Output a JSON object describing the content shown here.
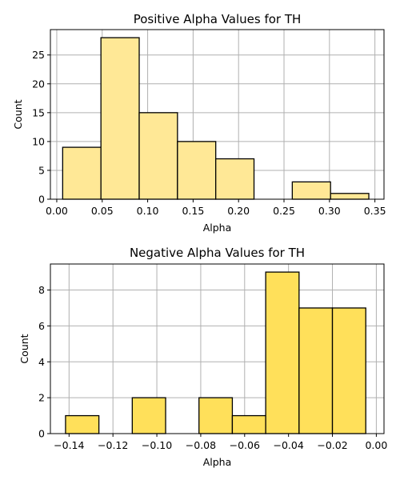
{
  "chart_data": [
    {
      "type": "bar",
      "title": "Positive Alpha Values for TH",
      "xlabel": "Alpha",
      "ylabel": "Count",
      "xlim": [
        -0.007,
        0.36
      ],
      "ylim": [
        0,
        29.4
      ],
      "xticks": [
        0.0,
        0.05,
        0.1,
        0.15,
        0.2,
        0.25,
        0.3,
        0.35
      ],
      "xtick_labels": [
        "0.00",
        "0.05",
        "0.10",
        "0.15",
        "0.20",
        "0.25",
        "0.30",
        "0.35"
      ],
      "yticks": [
        0,
        5,
        10,
        15,
        20,
        25
      ],
      "ytick_labels": [
        "0",
        "5",
        "10",
        "15",
        "20",
        "25"
      ],
      "bins": [
        {
          "x0": 0.0065,
          "x1": 0.0486,
          "count": 9
        },
        {
          "x0": 0.0486,
          "x1": 0.0907,
          "count": 28
        },
        {
          "x0": 0.0907,
          "x1": 0.1328,
          "count": 15
        },
        {
          "x0": 0.1328,
          "x1": 0.1749,
          "count": 10
        },
        {
          "x0": 0.1749,
          "x1": 0.217,
          "count": 7
        },
        {
          "x0": 0.217,
          "x1": 0.2591,
          "count": 0
        },
        {
          "x0": 0.2591,
          "x1": 0.3012,
          "count": 3
        },
        {
          "x0": 0.3012,
          "x1": 0.3433,
          "count": 1
        }
      ],
      "grid": true,
      "color": "#ffe896",
      "edgecolor": "#000000"
    },
    {
      "type": "bar",
      "title": "Negative Alpha Values for TH",
      "xlabel": "Alpha",
      "ylabel": "Count",
      "xlim": [
        -0.1485,
        0.0035
      ],
      "ylim": [
        0,
        9.45
      ],
      "xticks": [
        -0.14,
        -0.12,
        -0.1,
        -0.08,
        -0.06,
        -0.04,
        -0.02,
        0.0
      ],
      "xtick_labels": [
        "−0.14",
        "−0.12",
        "−0.10",
        "−0.08",
        "−0.06",
        "−0.04",
        "−0.02",
        "0.00"
      ],
      "yticks": [
        0,
        2,
        4,
        6,
        8
      ],
      "ytick_labels": [
        "0",
        "2",
        "4",
        "6",
        "8"
      ],
      "bins": [
        {
          "x0": -0.1416,
          "x1": -0.1264,
          "count": 1
        },
        {
          "x0": -0.1264,
          "x1": -0.1112,
          "count": 0
        },
        {
          "x0": -0.1112,
          "x1": -0.096,
          "count": 2
        },
        {
          "x0": -0.096,
          "x1": -0.0808,
          "count": 0
        },
        {
          "x0": -0.0808,
          "x1": -0.0656,
          "count": 2
        },
        {
          "x0": -0.0656,
          "x1": -0.0504,
          "count": 1
        },
        {
          "x0": -0.0504,
          "x1": -0.0352,
          "count": 9
        },
        {
          "x0": -0.0352,
          "x1": -0.02,
          "count": 7
        },
        {
          "x0": -0.02,
          "x1": -0.0048,
          "count": 7
        }
      ],
      "grid": true,
      "color": "#ffe05a",
      "edgecolor": "#000000"
    }
  ]
}
